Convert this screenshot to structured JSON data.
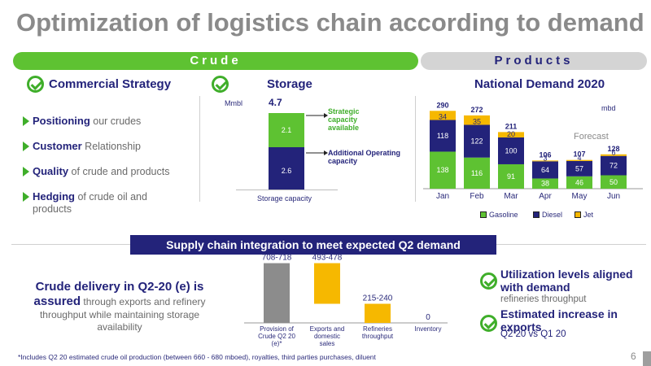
{
  "title": "Optimization of logistics chain according to demand",
  "banners": {
    "crude": "Crude",
    "products": "Products"
  },
  "commercial": {
    "heading": "Commercial Strategy",
    "items": [
      {
        "bold": "Positioning",
        "rest": " our crudes"
      },
      {
        "bold": "Customer",
        "rest": " Relationship"
      },
      {
        "bold": "Quality",
        "rest": " of crude and products"
      },
      {
        "bold": "Hedging",
        "rest": " of crude oil and products"
      }
    ]
  },
  "storage": {
    "heading": "Storage",
    "unit": "Mmbl",
    "total": "4.7",
    "axis_label": "Storage capacity",
    "annotation_top": "Strategic capacity available",
    "annotation_bottom": "Additional Operating capacity",
    "colors": {
      "strategic": "#5ec232",
      "operating": "#23237a"
    }
  },
  "chart_data": [
    {
      "type": "bar",
      "stacked": true,
      "title": "",
      "ylabel": "Mmbl",
      "categories": [
        "Storage capacity"
      ],
      "series": [
        {
          "name": "Additional Operating capacity",
          "values": [
            2.6
          ]
        },
        {
          "name": "Strategic capacity available",
          "values": [
            2.1
          ]
        }
      ],
      "totals": [
        4.7
      ]
    },
    {
      "type": "bar",
      "stacked": true,
      "title": "National Demand 2020",
      "unit": "mbd",
      "annotation": "Forecast",
      "categories": [
        "Jan",
        "Feb",
        "Mar",
        "Apr",
        "May",
        "Jun"
      ],
      "series": [
        {
          "name": "Gasoline",
          "values": [
            138,
            116,
            91,
            38,
            46,
            50
          ],
          "color": "#5ec232"
        },
        {
          "name": "Diesel",
          "values": [
            118,
            122,
            100,
            64,
            57,
            72
          ],
          "color": "#23237a"
        },
        {
          "name": "Jet",
          "values": [
            34,
            35,
            20,
            3,
            4,
            6
          ],
          "color": "#f6b800"
        }
      ],
      "totals": [
        290,
        272,
        211,
        106,
        107,
        128
      ],
      "ylim": [
        0,
        300
      ],
      "legend_position": "bottom"
    },
    {
      "type": "bar",
      "subtype": "waterfall",
      "title": "",
      "categories": [
        "Provision of Crude Q2 20 (e)*",
        "Exports and domestic sales",
        "Refineries throughput",
        "Inventory"
      ],
      "value_labels": [
        "708-718",
        "493-478",
        "215-240",
        "0"
      ],
      "values": [
        713,
        485,
        228,
        0
      ],
      "colors": [
        "#8c8c8c",
        "#f6b800",
        "#f6b800",
        "#f6b800"
      ]
    }
  ],
  "demand": {
    "heading": "National Demand 2020",
    "unit": "mbd",
    "forecast": "Forecast",
    "legend": [
      "Gasoline",
      "Diesel",
      "Jet"
    ]
  },
  "supply": {
    "banner": "Supply chain integration to meet expected Q2 demand"
  },
  "delivery": {
    "bold_a": "Crude delivery in Q2-20 (e) is",
    "bold_b": "assured",
    "rest": " through exports and refinery throughput while maintaining storage availability"
  },
  "right": {
    "util_bold": "Utilization levels aligned with demand",
    "util_sub": "refineries throughput",
    "est_bold": "Estimated increase in exports",
    "est_sub": "Q2 20 vs Q1 20"
  },
  "footnote": "*Includes Q2 20 estimated crude oil production (between 660 - 680 mboed), royalties, third parties purchases, diluent",
  "page_number": "6"
}
